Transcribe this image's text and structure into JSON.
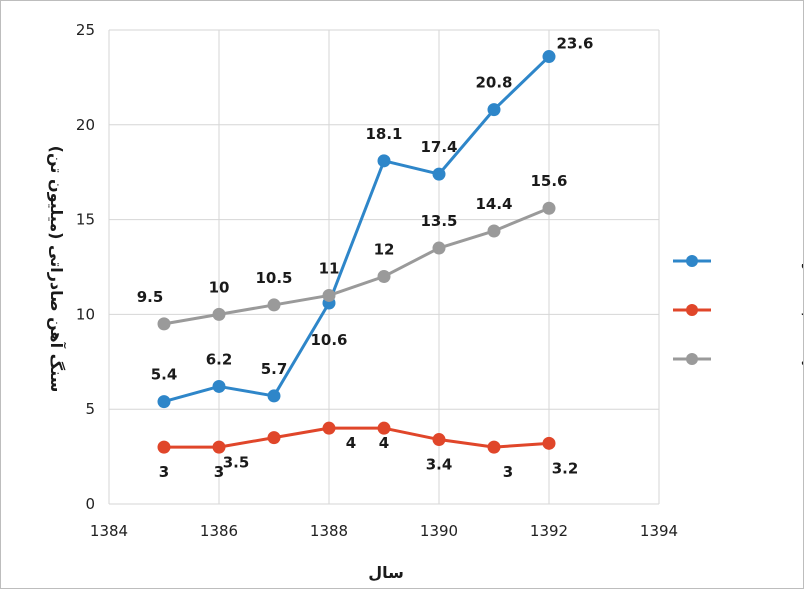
{
  "chart_data": {
    "type": "line",
    "xlabel": "سال",
    "ylabel": "سنگ آهن صادراتی (میلیون تن)",
    "xlim": [
      1384,
      1394
    ],
    "ylim": [
      0,
      25
    ],
    "x_ticks": [
      "1384",
      "1386",
      "1388",
      "1390",
      "1392",
      "1394"
    ],
    "y_ticks": [
      "0",
      "5",
      "10",
      "15",
      "20",
      "25"
    ],
    "grid": true,
    "legend_position": "right",
    "x": [
      1385,
      1386,
      1387,
      1388,
      1389,
      1390,
      1391,
      1392
    ],
    "series": [
      {
        "name": "صادرات سنگ آهن",
        "color": "#2e86c9",
        "values": [
          5.4,
          6.2,
          5.7,
          10.6,
          18.1,
          17.4,
          20.8,
          23.6
        ],
        "labels": [
          "5.4",
          "6.2",
          "5.7",
          "10.6",
          "18.1",
          "17.4",
          "20.8",
          "23.6"
        ]
      },
      {
        "name": "واردات شمش فولاد",
        "color": "#e0462a",
        "values": [
          3,
          3,
          3.5,
          4,
          4,
          3.4,
          3,
          3.2
        ],
        "labels": [
          "3",
          "3",
          "3.5",
          "4",
          "4",
          "3.4",
          "3",
          "3.2"
        ]
      },
      {
        "name": "تولید شمش فولادی",
        "color": "#9a9a9a",
        "values": [
          9.5,
          10,
          10.5,
          11,
          12,
          13.5,
          14.4,
          15.6
        ],
        "labels": [
          "9.5",
          "10",
          "10.5",
          "11",
          "12",
          "13.5",
          "14.4",
          "15.6"
        ]
      }
    ]
  }
}
